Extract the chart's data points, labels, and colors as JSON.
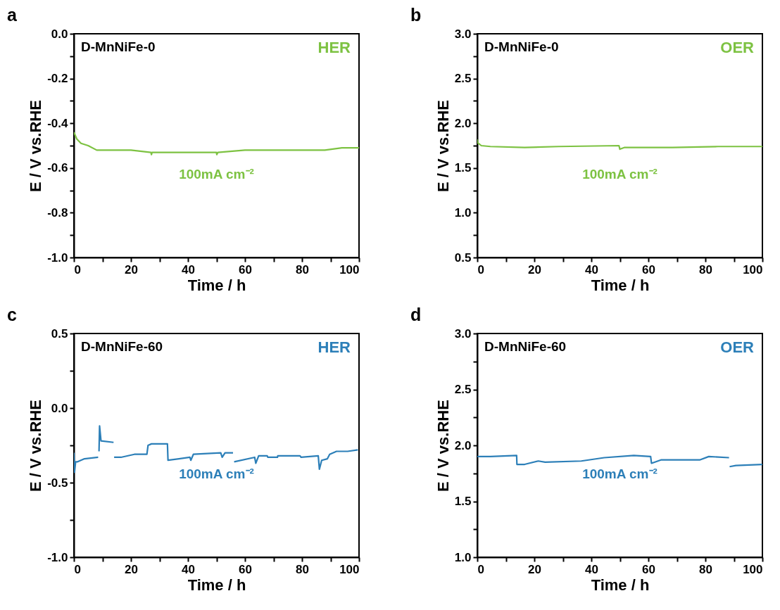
{
  "chart_data": [
    {
      "type": "line",
      "title": "a",
      "xlabel": "Time / h",
      "ylabel": "E / V vs.RHE",
      "annotations": [
        "D-MnNiFe-0",
        "HER",
        "100mA cm⁻²"
      ],
      "x": [
        0,
        1,
        2.5,
        5,
        8,
        12,
        20,
        27,
        27.2,
        27.4,
        50,
        50.1,
        50.5,
        60,
        75,
        88,
        94,
        100
      ],
      "series": [
        {
          "color": "#7dc242",
          "values": [
            -0.44,
            -0.47,
            -0.49,
            -0.5,
            -0.52,
            -0.52,
            -0.52,
            -0.53,
            -0.54,
            -0.53,
            -0.53,
            -0.54,
            -0.53,
            -0.52,
            -0.52,
            -0.52,
            -0.51,
            -0.51
          ]
        }
      ],
      "xlim": [
        0,
        100
      ],
      "xticks": [
        0,
        {
          "value": 10,
          "label": null
        },
        20,
        {
          "value": 30,
          "label": null
        },
        40,
        {
          "value": 50,
          "label": null
        },
        60,
        {
          "value": 70,
          "label": null
        },
        80,
        {
          "value": 90,
          "label": null
        },
        100
      ],
      "ylim": [
        -1.0,
        0.0
      ],
      "yticks": [
        {
          "value": -1.0,
          "label": "-1.0"
        },
        {
          "value": -0.9,
          "label": null
        },
        -0.8,
        {
          "value": -0.7,
          "label": null
        },
        -0.6,
        {
          "value": -0.5,
          "label": null
        },
        -0.4,
        {
          "value": -0.3,
          "label": null
        },
        -0.2,
        {
          "value": -0.1,
          "label": null
        },
        {
          "value": 0,
          "label": "0.0"
        }
      ]
    },
    {
      "type": "line",
      "title": "b",
      "xlabel": "Time / h",
      "ylabel": "E / V vs.RHE",
      "annotations": [
        "D-MnNiFe-0",
        "OER",
        "100mA cm⁻²"
      ],
      "x": [
        0,
        0.2,
        1.4,
        4.6,
        16.6,
        28.5,
        49.7,
        50,
        51.7,
        68.4,
        84.4,
        100
      ],
      "series": [
        {
          "color": "#7dc242",
          "values": [
            1.82,
            1.78,
            1.75,
            1.74,
            1.73,
            1.74,
            1.75,
            1.71,
            1.73,
            1.73,
            1.74,
            1.74
          ]
        }
      ],
      "xlim": [
        0,
        100
      ],
      "xticks": [
        0,
        {
          "value": 10,
          "label": null
        },
        20,
        {
          "value": 30,
          "label": null
        },
        40,
        {
          "value": 50,
          "label": null
        },
        60,
        {
          "value": 70,
          "label": null
        },
        80,
        {
          "value": 90,
          "label": null
        },
        100
      ],
      "ylim": [
        0.5,
        3.0
      ],
      "yticks": [
        0.5,
        {
          "value": 0.75,
          "label": null
        },
        {
          "value": 1.0,
          "label": "1.0"
        },
        {
          "value": 1.25,
          "label": null
        },
        1.5,
        {
          "value": 1.75,
          "label": null
        },
        {
          "value": 2.0,
          "label": "2.0"
        },
        {
          "value": 2.25,
          "label": null
        },
        2.5,
        {
          "value": 2.75,
          "label": null
        },
        {
          "value": 3.0,
          "label": "3.0"
        }
      ]
    },
    {
      "type": "line",
      "title": "c",
      "xlabel": "Time / h",
      "ylabel": "E / V vs.RHE",
      "annotations": [
        "D-MnNiFe-60",
        "HER",
        "100mA cm⁻²"
      ],
      "x": [
        0,
        0.2,
        0.6,
        1.3,
        3.7,
        8.5,
        8.6,
        8.8,
        9.0,
        9.5,
        13.9,
        14.0,
        14.1,
        16.5,
        21.2,
        25.6,
        26.0,
        27.2,
        32.8,
        33.0,
        40.7,
        41.0,
        41.9,
        51.5,
        52.0,
        53.0,
        55.8,
        56.0,
        56.2,
        63.4,
        63.8,
        64.8,
        67.8,
        68.0,
        71.4,
        71.5,
        79.3,
        79.7,
        85.7,
        86.1,
        86.9,
        88.9,
        89.7,
        92.1,
        96,
        99.6
      ],
      "series": [
        {
          "color": "#2c7fb8",
          "values": [
            -0.3,
            -0.43,
            -0.36,
            -0.36,
            -0.34,
            -0.33,
            null,
            -0.29,
            -0.12,
            -0.22,
            -0.23,
            null,
            -0.33,
            -0.33,
            -0.31,
            -0.31,
            -0.25,
            -0.24,
            -0.24,
            -0.35,
            -0.33,
            -0.35,
            -0.31,
            -0.3,
            -0.33,
            -0.3,
            -0.3,
            null,
            -0.36,
            -0.33,
            -0.37,
            -0.32,
            -0.32,
            -0.33,
            -0.33,
            -0.32,
            -0.32,
            -0.33,
            -0.32,
            -0.41,
            -0.35,
            -0.34,
            -0.31,
            -0.29,
            -0.29,
            -0.28
          ]
        }
      ],
      "xlim": [
        0,
        100
      ],
      "xticks": [
        0,
        {
          "value": 10,
          "label": null
        },
        20,
        {
          "value": 30,
          "label": null
        },
        40,
        {
          "value": 50,
          "label": null
        },
        60,
        {
          "value": 70,
          "label": null
        },
        80,
        {
          "value": 90,
          "label": null
        },
        100
      ],
      "ylim": [
        -1.0,
        0.5
      ],
      "yticks": [
        {
          "value": -1.0,
          "label": "-1.0"
        },
        {
          "value": -0.75,
          "label": null
        },
        -0.5,
        {
          "value": -0.25,
          "label": null
        },
        {
          "value": 0,
          "label": "0.0"
        },
        {
          "value": 0.25,
          "label": null
        },
        0.5
      ]
    },
    {
      "type": "line",
      "title": "d",
      "xlabel": "Time / h",
      "ylabel": "E / V vs.RHE",
      "annotations": [
        "D-MnNiFe-60",
        "OER",
        "100mA cm⁻²"
      ],
      "x": [
        0,
        4.6,
        13.8,
        13.9,
        16.6,
        21.4,
        23.8,
        36.5,
        44.5,
        54.9,
        60.8,
        61.1,
        64.4,
        78,
        81.2,
        88.3,
        88.4,
        88.5,
        90.7,
        100
      ],
      "series": [
        {
          "color": "#2c7fb8",
          "values": [
            1.9,
            1.9,
            1.91,
            1.83,
            1.83,
            1.86,
            1.85,
            1.86,
            1.89,
            1.91,
            1.9,
            1.84,
            1.87,
            1.87,
            1.9,
            1.89,
            null,
            1.81,
            1.82,
            1.83
          ]
        }
      ],
      "xlim": [
        0,
        100
      ],
      "xticks": [
        0,
        {
          "value": 10,
          "label": null
        },
        20,
        {
          "value": 30,
          "label": null
        },
        40,
        {
          "value": 50,
          "label": null
        },
        60,
        {
          "value": 70,
          "label": null
        },
        80,
        {
          "value": 90,
          "label": null
        },
        100
      ],
      "ylim": [
        1.0,
        3.0
      ],
      "yticks": [
        {
          "value": 1.0,
          "label": "1.0"
        },
        {
          "value": 1.25,
          "label": null
        },
        1.5,
        {
          "value": 1.75,
          "label": null
        },
        {
          "value": 2.0,
          "label": "2.0"
        },
        {
          "value": 2.25,
          "label": null
        },
        2.5,
        {
          "value": 2.75,
          "label": null
        },
        {
          "value": 3.0,
          "label": "3.0"
        }
      ]
    }
  ]
}
